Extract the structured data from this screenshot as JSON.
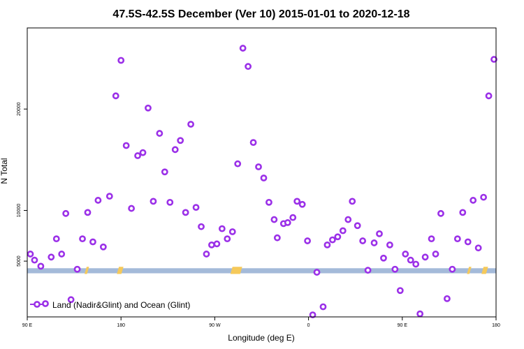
{
  "chart_data": {
    "type": "scatter",
    "title": "47.5S-42.5S December (Ver 10)   2015-01-01 to 2020-12-18",
    "xlabel": "Longitude (deg E)",
    "ylabel": "N Total",
    "xlim": [
      90,
      540
    ],
    "ylim": [
      -500,
      28000
    ],
    "x_ticks": [
      {
        "value": 90,
        "label": "90 E"
      },
      {
        "value": 180,
        "label": "180"
      },
      {
        "value": 270,
        "label": "90 W"
      },
      {
        "value": 360,
        "label": "0"
      },
      {
        "value": 450,
        "label": "90 E"
      },
      {
        "value": 540,
        "label": "180"
      }
    ],
    "y_ticks": [
      {
        "value": 5000,
        "label": "5000"
      },
      {
        "value": 10000,
        "label": "10000"
      },
      {
        "value": 20000,
        "label": "20000"
      }
    ],
    "band": {
      "y_from": 3800,
      "y_to": 4300,
      "color": "#a4bad9"
    },
    "highlight_color": "#f5c95a",
    "highlights": [
      {
        "x_from": 145,
        "x_to": 146
      },
      {
        "x_from": 176,
        "x_to": 179
      },
      {
        "x_from": 285,
        "x_to": 293
      },
      {
        "x_from": 512,
        "x_to": 513
      },
      {
        "x_from": 526,
        "x_to": 529
      }
    ],
    "legend": {
      "label": "Land (Nadir&Glint) and Ocean (Glint)",
      "position": "bottom-left"
    },
    "series": [
      {
        "name": "Land (Nadir&Glint) and Ocean (Glint)",
        "color": "#9b30e8",
        "points": [
          {
            "x": 93,
            "y": 5700
          },
          {
            "x": 97,
            "y": 5100
          },
          {
            "x": 103,
            "y": 4500
          },
          {
            "x": 113,
            "y": 5400
          },
          {
            "x": 118,
            "y": 7200
          },
          {
            "x": 123,
            "y": 5700
          },
          {
            "x": 127,
            "y": 9700
          },
          {
            "x": 132,
            "y": 1200
          },
          {
            "x": 138,
            "y": 4200
          },
          {
            "x": 143,
            "y": 7200
          },
          {
            "x": 148,
            "y": 9800
          },
          {
            "x": 153,
            "y": 6900
          },
          {
            "x": 158,
            "y": 11000
          },
          {
            "x": 163,
            "y": 6400
          },
          {
            "x": 169,
            "y": 11400
          },
          {
            "x": 175,
            "y": 21300
          },
          {
            "x": 180,
            "y": 24800
          },
          {
            "x": 185,
            "y": 16400
          },
          {
            "x": 190,
            "y": 10200
          },
          {
            "x": 196,
            "y": 15400
          },
          {
            "x": 201,
            "y": 15700
          },
          {
            "x": 206,
            "y": 20100
          },
          {
            "x": 211,
            "y": 10900
          },
          {
            "x": 217,
            "y": 17600
          },
          {
            "x": 222,
            "y": 13800
          },
          {
            "x": 227,
            "y": 10800
          },
          {
            "x": 232,
            "y": 16000
          },
          {
            "x": 237,
            "y": 16900
          },
          {
            "x": 242,
            "y": 9800
          },
          {
            "x": 247,
            "y": 18500
          },
          {
            "x": 252,
            "y": 10300
          },
          {
            "x": 257,
            "y": 8400
          },
          {
            "x": 262,
            "y": 5700
          },
          {
            "x": 267,
            "y": 6600
          },
          {
            "x": 272,
            "y": 6700
          },
          {
            "x": 277,
            "y": 8200
          },
          {
            "x": 282,
            "y": 7200
          },
          {
            "x": 287,
            "y": 7900
          },
          {
            "x": 292,
            "y": 14600
          },
          {
            "x": 297,
            "y": 26000
          },
          {
            "x": 302,
            "y": 24200
          },
          {
            "x": 307,
            "y": 16700
          },
          {
            "x": 312,
            "y": 14300
          },
          {
            "x": 317,
            "y": 13200
          },
          {
            "x": 322,
            "y": 10800
          },
          {
            "x": 327,
            "y": 9100
          },
          {
            "x": 330,
            "y": 7300
          },
          {
            "x": 336,
            "y": 8700
          },
          {
            "x": 340,
            "y": 8800
          },
          {
            "x": 345,
            "y": 9300
          },
          {
            "x": 349,
            "y": 10900
          },
          {
            "x": 354,
            "y": 10600
          },
          {
            "x": 359,
            "y": 7000
          },
          {
            "x": 364,
            "y": -300
          },
          {
            "x": 368,
            "y": 3900
          },
          {
            "x": 374,
            "y": 500
          },
          {
            "x": 378,
            "y": 6600
          },
          {
            "x": 383,
            "y": 7100
          },
          {
            "x": 388,
            "y": 7400
          },
          {
            "x": 393,
            "y": 8000
          },
          {
            "x": 398,
            "y": 9100
          },
          {
            "x": 402,
            "y": 10900
          },
          {
            "x": 407,
            "y": 8500
          },
          {
            "x": 412,
            "y": 7000
          },
          {
            "x": 417,
            "y": 4100
          },
          {
            "x": 423,
            "y": 6800
          },
          {
            "x": 428,
            "y": 7700
          },
          {
            "x": 432,
            "y": 5300
          },
          {
            "x": 438,
            "y": 6600
          },
          {
            "x": 443,
            "y": 4200
          },
          {
            "x": 448,
            "y": 2100
          },
          {
            "x": 453,
            "y": 5700
          },
          {
            "x": 458,
            "y": 5100
          },
          {
            "x": 463,
            "y": 4700
          },
          {
            "x": 467,
            "y": -200
          },
          {
            "x": 472,
            "y": 5400
          },
          {
            "x": 478,
            "y": 7200
          },
          {
            "x": 482,
            "y": 5700
          },
          {
            "x": 487,
            "y": 9700
          },
          {
            "x": 493,
            "y": 1300
          },
          {
            "x": 498,
            "y": 4200
          },
          {
            "x": 503,
            "y": 7200
          },
          {
            "x": 508,
            "y": 9800
          },
          {
            "x": 513,
            "y": 6900
          },
          {
            "x": 518,
            "y": 11000
          },
          {
            "x": 523,
            "y": 6300
          },
          {
            "x": 528,
            "y": 11300
          },
          {
            "x": 533,
            "y": 21300
          },
          {
            "x": 538,
            "y": 24900
          }
        ]
      }
    ]
  }
}
